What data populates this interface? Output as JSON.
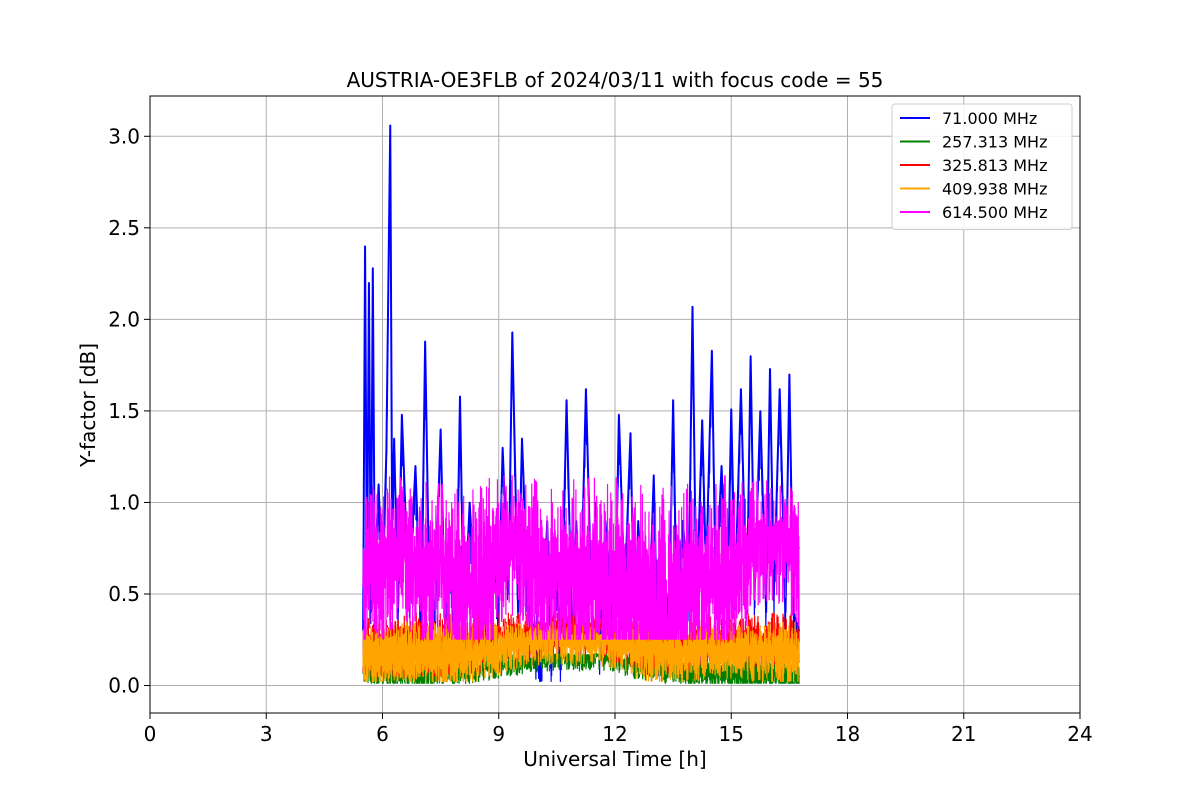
{
  "chart_data": {
    "type": "line",
    "title": "AUSTRIA-OE3FLB of 2024/03/11 with focus code = 55",
    "xlabel": "Universal Time [h]",
    "ylabel": "Y-factor [dB]",
    "xlim": [
      0,
      24
    ],
    "ylim": [
      -0.15,
      3.22
    ],
    "xticks": [
      0,
      3,
      6,
      9,
      12,
      15,
      18,
      21,
      24
    ],
    "xtick_labels": [
      "0",
      "3",
      "6",
      "9",
      "12",
      "15",
      "18",
      "21",
      "24"
    ],
    "yticks": [
      0.0,
      0.5,
      1.0,
      1.5,
      2.0,
      2.5,
      3.0
    ],
    "ytick_labels": [
      "0.0",
      "0.5",
      "1.0",
      "1.5",
      "2.0",
      "2.5",
      "3.0"
    ],
    "grid": true,
    "legend_position": "top-right",
    "x_range": [
      5.5,
      16.75
    ],
    "series": [
      {
        "name": "  71.000 MHz",
        "color": "#0000ff",
        "x": [
          5.5,
          5.55,
          5.6,
          5.65,
          5.7,
          5.75,
          5.8,
          5.9,
          6.0,
          6.1,
          6.2,
          6.25,
          6.3,
          6.4,
          6.5,
          6.6,
          6.7,
          6.85,
          7.0,
          7.1,
          7.2,
          7.35,
          7.5,
          7.6,
          7.75,
          7.9,
          8.0,
          8.1,
          8.25,
          8.4,
          8.5,
          8.6,
          8.75,
          8.9,
          9.0,
          9.1,
          9.25,
          9.35,
          9.5,
          9.6,
          9.75,
          9.9,
          10.0,
          10.1,
          10.25,
          10.35,
          10.5,
          10.6,
          10.75,
          10.9,
          11.0,
          11.1,
          11.25,
          11.4,
          11.5,
          11.6,
          11.75,
          11.9,
          12.0,
          12.1,
          12.25,
          12.4,
          12.5,
          12.6,
          12.75,
          12.9,
          13.0,
          13.1,
          13.25,
          13.4,
          13.5,
          13.6,
          13.75,
          13.9,
          14.0,
          14.1,
          14.25,
          14.35,
          14.5,
          14.6,
          14.75,
          14.9,
          15.0,
          15.1,
          15.25,
          15.4,
          15.5,
          15.6,
          15.75,
          15.9,
          16.0,
          16.1,
          16.25,
          16.4,
          16.5,
          16.6,
          16.75
        ],
        "values": [
          0.3,
          2.4,
          0.5,
          2.2,
          0.4,
          2.28,
          0.6,
          1.1,
          0.5,
          1.28,
          3.06,
          0.8,
          1.35,
          0.4,
          1.48,
          0.9,
          0.5,
          1.2,
          0.3,
          1.88,
          0.6,
          0.4,
          1.4,
          0.5,
          0.7,
          0.3,
          1.58,
          0.3,
          1.0,
          0.4,
          0.55,
          0.3,
          0.6,
          0.7,
          0.4,
          1.3,
          0.5,
          1.93,
          0.4,
          1.35,
          0.5,
          0.3,
          0.2,
          0.1,
          0.9,
          0.15,
          0.6,
          0.1,
          1.56,
          0.2,
          0.9,
          0.3,
          1.62,
          0.4,
          1.0,
          0.2,
          0.9,
          0.5,
          0.3,
          1.48,
          0.5,
          1.38,
          0.3,
          0.9,
          0.2,
          0.5,
          1.15,
          0.2,
          0.6,
          0.4,
          1.56,
          0.3,
          0.9,
          0.5,
          2.07,
          0.4,
          1.45,
          0.6,
          1.83,
          0.5,
          1.2,
          0.4,
          1.51,
          0.5,
          1.62,
          0.4,
          1.8,
          0.5,
          1.5,
          0.4,
          1.73,
          0.5,
          1.62,
          0.4,
          1.7,
          0.4,
          0.3
        ],
        "band_low": 0.02,
        "band_high": 0.45
      },
      {
        "name": "  257.313 MHz",
        "color": "#008000",
        "x": [
          5.5,
          6.0,
          6.5,
          7.0,
          7.5,
          8.0,
          8.5,
          9.0,
          9.5,
          10.0,
          10.5,
          11.0,
          11.5,
          12.0,
          12.5,
          13.0,
          13.5,
          14.0,
          14.5,
          15.0,
          15.5,
          16.0,
          16.5,
          16.75
        ],
        "values": [
          0.1,
          0.08,
          0.08,
          0.07,
          0.08,
          0.08,
          0.1,
          0.12,
          0.14,
          0.15,
          0.17,
          0.16,
          0.17,
          0.15,
          0.12,
          0.1,
          0.08,
          0.08,
          0.07,
          0.06,
          0.05,
          0.05,
          0.05,
          0.05
        ],
        "band_low": 0.01,
        "band_high": 0.18
      },
      {
        "name": "  325.813 MHz",
        "color": "#ff0000",
        "x": [
          5.5,
          6.0,
          6.5,
          7.0,
          7.5,
          8.0,
          8.5,
          9.0,
          9.5,
          10.0,
          10.5,
          11.0,
          11.5,
          12.0,
          12.5,
          13.0,
          13.5,
          14.0,
          14.5,
          15.0,
          15.5,
          16.0,
          16.5,
          16.75
        ],
        "values": [
          0.2,
          0.2,
          0.2,
          0.22,
          0.2,
          0.22,
          0.24,
          0.28,
          0.3,
          0.32,
          0.35,
          0.33,
          0.34,
          0.3,
          0.27,
          0.25,
          0.24,
          0.26,
          0.28,
          0.28,
          0.27,
          0.26,
          0.26,
          0.25
        ],
        "band_low": 0.05,
        "band_high": 0.4
      },
      {
        "name": "  409.938 MHz",
        "color": "#ffa500",
        "x": [
          5.5,
          6.0,
          6.5,
          7.0,
          7.5,
          8.0,
          8.5,
          9.0,
          9.5,
          10.0,
          10.5,
          11.0,
          11.5,
          12.0,
          12.5,
          13.0,
          13.5,
          14.0,
          14.5,
          15.0,
          15.5,
          16.0,
          16.5,
          16.75
        ],
        "values": [
          0.15,
          0.14,
          0.15,
          0.16,
          0.15,
          0.16,
          0.18,
          0.22,
          0.25,
          0.27,
          0.28,
          0.27,
          0.28,
          0.25,
          0.2,
          0.18,
          0.17,
          0.18,
          0.2,
          0.2,
          0.18,
          0.17,
          0.16,
          0.16
        ],
        "band_low": 0.02,
        "band_high": 0.35
      },
      {
        "name": "  614.500 MHz",
        "color": "#ff00ff",
        "x": [
          5.5,
          5.75,
          6.0,
          6.25,
          6.5,
          6.75,
          7.0,
          7.25,
          7.5,
          7.75,
          8.0,
          8.25,
          8.5,
          8.75,
          9.0,
          9.25,
          9.5,
          9.75,
          10.0,
          10.25,
          10.5,
          10.75,
          11.0,
          11.25,
          11.5,
          11.75,
          12.0,
          12.25,
          12.5,
          12.75,
          13.0,
          13.25,
          13.5,
          13.75,
          14.0,
          14.25,
          14.5,
          14.75,
          15.0,
          15.25,
          15.5,
          15.75,
          16.0,
          16.25,
          16.5,
          16.75
        ],
        "values": [
          0.55,
          0.7,
          0.6,
          0.75,
          0.85,
          0.7,
          0.65,
          0.6,
          0.7,
          0.6,
          0.5,
          0.45,
          0.45,
          0.55,
          0.75,
          0.85,
          0.8,
          0.7,
          0.65,
          0.6,
          0.65,
          0.6,
          0.55,
          0.5,
          0.6,
          0.5,
          0.45,
          0.5,
          0.4,
          0.45,
          0.4,
          0.35,
          0.35,
          0.4,
          0.5,
          0.55,
          0.6,
          0.55,
          0.6,
          0.7,
          0.8,
          0.9,
          0.85,
          0.9,
          0.85,
          0.75
        ],
        "band_low": 0.25,
        "band_high": 1.15
      }
    ]
  }
}
